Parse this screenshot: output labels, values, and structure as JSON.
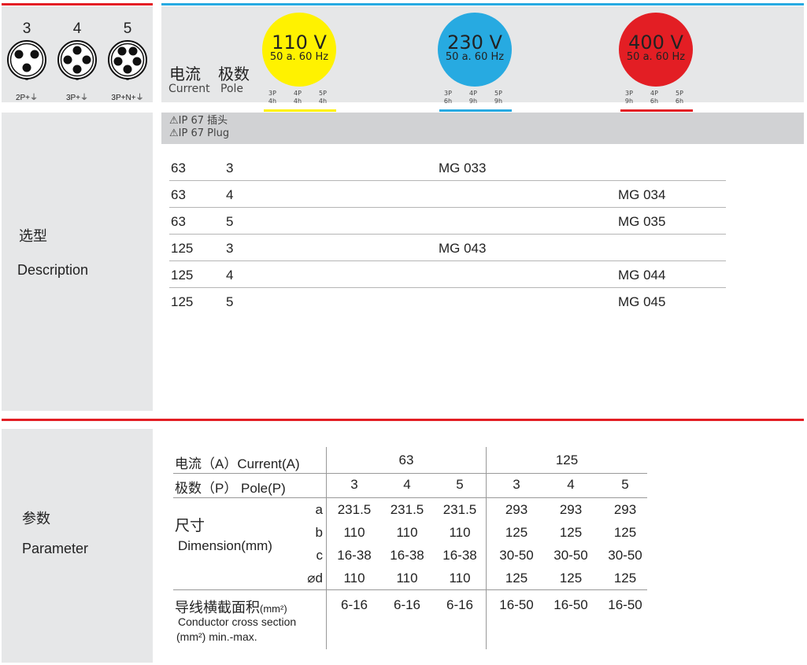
{
  "colors": {
    "red": "#e31e24",
    "blue": "#27aae1",
    "yellow": "#fff200",
    "panel": "#e6e7e8"
  },
  "sockets": [
    {
      "number": "3",
      "label": "2P+⏚",
      "pins": 3
    },
    {
      "number": "4",
      "label": "3P+⏚",
      "pins": 4
    },
    {
      "number": "5",
      "label": "3P+N+⏚",
      "pins": 5
    }
  ],
  "header": {
    "current_cn": "电流",
    "current_en": "Current",
    "pole_cn": "极数",
    "pole_en": "Pole"
  },
  "voltages": [
    {
      "voltage": "110 V",
      "freq": "50 a. 60 Hz",
      "color": "#fff200",
      "poles": [
        [
          "3P",
          "4h"
        ],
        [
          "4P",
          "4h"
        ],
        [
          "5P",
          "4h"
        ]
      ]
    },
    {
      "voltage": "230 V",
      "freq": "50 a. 60 Hz",
      "color": "#27aae1",
      "poles": [
        [
          "3P",
          "6h"
        ],
        [
          "4P",
          "9h"
        ],
        [
          "5P",
          "9h"
        ]
      ]
    },
    {
      "voltage": "400 V",
      "freq": "50 a. 60 Hz",
      "color": "#e31e24",
      "poles": [
        [
          "3P",
          "9h"
        ],
        [
          "4P",
          "6h"
        ],
        [
          "5P",
          "6h"
        ]
      ]
    }
  ],
  "description": {
    "label_cn": "选型",
    "label_en": "Description",
    "banner": [
      "IP 67  插头",
      "IP 67  Plug"
    ],
    "rows": [
      {
        "current": "63",
        "pole": "3",
        "v230": "MG 033",
        "v400": ""
      },
      {
        "current": "63",
        "pole": "4",
        "v230": "",
        "v400": "MG 034"
      },
      {
        "current": "63",
        "pole": "5",
        "v230": "",
        "v400": "MG 035"
      },
      {
        "current": "125",
        "pole": "3",
        "v230": "MG 043",
        "v400": ""
      },
      {
        "current": "125",
        "pole": "4",
        "v230": "",
        "v400": "MG 044"
      },
      {
        "current": "125",
        "pole": "5",
        "v230": "",
        "v400": "MG 045"
      }
    ]
  },
  "parameter": {
    "label_cn": "参数",
    "label_en": "Parameter",
    "current_label": "电流（A）Current(A)",
    "pole_label": "极数（P） Pole(P)",
    "currents": [
      "63",
      "125"
    ],
    "poles": [
      "3",
      "4",
      "5",
      "3",
      "4",
      "5"
    ],
    "dim_cn": "尺寸",
    "dim_en": "Dimension(mm)",
    "dims": [
      {
        "key": "a",
        "values": [
          "231.5",
          "231.5",
          "231.5",
          "293",
          "293",
          "293"
        ]
      },
      {
        "key": "b",
        "values": [
          "110",
          "110",
          "110",
          "125",
          "125",
          "125"
        ]
      },
      {
        "key": "c",
        "values": [
          "16-38",
          "16-38",
          "16-38",
          "30-50",
          "30-50",
          "30-50"
        ]
      },
      {
        "key": "⌀d",
        "values": [
          "110",
          "110",
          "110",
          "125",
          "125",
          "125"
        ]
      }
    ],
    "conductor_cn": "导线横截面积",
    "conductor_unit": "(mm²)",
    "conductor_en1": "Conductor cross section",
    "conductor_en2": "(mm²) min.-max.",
    "conductor_values": [
      "6-16",
      "6-16",
      "6-16",
      "16-50",
      "16-50",
      "16-50"
    ]
  }
}
